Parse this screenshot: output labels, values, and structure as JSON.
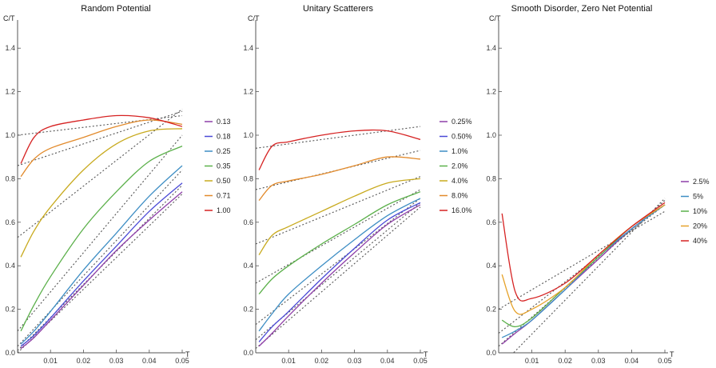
{
  "chart_data": [
    {
      "type": "line",
      "title": "Random Potential",
      "xlabel": "T",
      "ylabel": "C/T",
      "xlim": [
        0,
        0.05
      ],
      "ylim": [
        0,
        1.5
      ],
      "xticks": [
        "0.01",
        "0.02",
        "0.03",
        "0.04",
        "0.05"
      ],
      "yticks": [
        "0.0",
        "0.2",
        "0.4",
        "0.6",
        "0.8",
        "1.0",
        "1.2",
        "1.4"
      ],
      "legend_position": "right",
      "series": [
        {
          "name": "0.13",
          "color": "#8e3fa8",
          "x": [
            0.001,
            0.005,
            0.01,
            0.02,
            0.03,
            0.04,
            0.05
          ],
          "values": [
            0.02,
            0.07,
            0.15,
            0.31,
            0.47,
            0.61,
            0.74
          ]
        },
        {
          "name": "0.18",
          "color": "#4a49d6",
          "x": [
            0.001,
            0.005,
            0.01,
            0.02,
            0.03,
            0.04,
            0.05
          ],
          "values": [
            0.03,
            0.08,
            0.16,
            0.33,
            0.49,
            0.65,
            0.78
          ]
        },
        {
          "name": "0.25",
          "color": "#3e8ec4",
          "x": [
            0.001,
            0.005,
            0.01,
            0.02,
            0.03,
            0.04,
            0.05
          ],
          "values": [
            0.04,
            0.1,
            0.19,
            0.38,
            0.55,
            0.72,
            0.86
          ]
        },
        {
          "name": "0.35",
          "color": "#5bb04a",
          "x": [
            0.001,
            0.005,
            0.01,
            0.02,
            0.03,
            0.04,
            0.05
          ],
          "values": [
            0.1,
            0.22,
            0.35,
            0.57,
            0.74,
            0.88,
            0.95
          ]
        },
        {
          "name": "0.50",
          "color": "#c8aa1e",
          "x": [
            0.001,
            0.005,
            0.01,
            0.02,
            0.03,
            0.04,
            0.05
          ],
          "values": [
            0.44,
            0.56,
            0.67,
            0.84,
            0.96,
            1.02,
            1.03
          ]
        },
        {
          "name": "0.71",
          "color": "#e28a2b",
          "x": [
            0.001,
            0.005,
            0.01,
            0.02,
            0.03,
            0.04,
            0.05
          ],
          "values": [
            0.81,
            0.89,
            0.94,
            0.99,
            1.04,
            1.07,
            1.05
          ]
        },
        {
          "name": "1.00",
          "color": "#d62222",
          "x": [
            0.001,
            0.005,
            0.01,
            0.02,
            0.03,
            0.04,
            0.05
          ],
          "values": [
            0.87,
            0.99,
            1.04,
            1.07,
            1.09,
            1.08,
            1.04
          ]
        }
      ],
      "reference_lines": [
        {
          "x": [
            0.0,
            0.05
          ],
          "values": [
            0.0,
            0.73
          ]
        },
        {
          "x": [
            0.0,
            0.05
          ],
          "values": [
            0.01,
            0.77
          ]
        },
        {
          "x": [
            0.0,
            0.05
          ],
          "values": [
            0.03,
            0.84
          ]
        },
        {
          "x": [
            0.0,
            0.05
          ],
          "values": [
            0.1,
            1.0
          ]
        },
        {
          "x": [
            0.0,
            0.05
          ],
          "values": [
            0.53,
            1.12
          ]
        },
        {
          "x": [
            0.0,
            0.05
          ],
          "values": [
            0.86,
            1.11
          ]
        },
        {
          "x": [
            0.0,
            0.05
          ],
          "values": [
            1.0,
            1.09
          ]
        }
      ]
    },
    {
      "type": "line",
      "title": "Unitary Scatterers",
      "xlabel": "T",
      "ylabel": "C/T",
      "xlim": [
        0,
        0.05
      ],
      "ylim": [
        0,
        1.5
      ],
      "xticks": [
        "0.01",
        "0.02",
        "0.03",
        "0.04",
        "0.05"
      ],
      "yticks": [
        "0.0",
        "0.2",
        "0.4",
        "0.6",
        "0.8",
        "1.0",
        "1.2",
        "1.4"
      ],
      "legend_position": "right",
      "series": [
        {
          "name": "0.25%",
          "color": "#8e3fa8",
          "x": [
            0.001,
            0.005,
            0.01,
            0.02,
            0.03,
            0.04,
            0.05
          ],
          "values": [
            0.03,
            0.09,
            0.17,
            0.32,
            0.46,
            0.59,
            0.68
          ]
        },
        {
          "name": "0.50%",
          "color": "#4a49d6",
          "x": [
            0.001,
            0.005,
            0.01,
            0.02,
            0.03,
            0.04,
            0.05
          ],
          "values": [
            0.05,
            0.12,
            0.19,
            0.34,
            0.48,
            0.61,
            0.69
          ]
        },
        {
          "name": "1.0%",
          "color": "#3e8ec4",
          "x": [
            0.001,
            0.005,
            0.01,
            0.02,
            0.03,
            0.04,
            0.05
          ],
          "values": [
            0.1,
            0.18,
            0.27,
            0.4,
            0.52,
            0.63,
            0.71
          ]
        },
        {
          "name": "2.0%",
          "color": "#5bb04a",
          "x": [
            0.001,
            0.005,
            0.01,
            0.02,
            0.03,
            0.04,
            0.05
          ],
          "values": [
            0.27,
            0.34,
            0.4,
            0.5,
            0.59,
            0.68,
            0.74
          ]
        },
        {
          "name": "4.0%",
          "color": "#c8aa1e",
          "x": [
            0.001,
            0.005,
            0.01,
            0.02,
            0.03,
            0.04,
            0.05
          ],
          "values": [
            0.45,
            0.54,
            0.58,
            0.65,
            0.72,
            0.78,
            0.8
          ]
        },
        {
          "name": "8.0%",
          "color": "#e28a2b",
          "x": [
            0.001,
            0.005,
            0.01,
            0.02,
            0.03,
            0.04,
            0.05
          ],
          "values": [
            0.7,
            0.77,
            0.79,
            0.82,
            0.86,
            0.9,
            0.89
          ]
        },
        {
          "name": "16.0%",
          "color": "#d62222",
          "x": [
            0.001,
            0.005,
            0.01,
            0.02,
            0.03,
            0.04,
            0.05
          ],
          "values": [
            0.84,
            0.95,
            0.97,
            1.0,
            1.02,
            1.02,
            0.98
          ]
        }
      ],
      "reference_lines": [
        {
          "x": [
            0.0,
            0.05
          ],
          "values": [
            0.02,
            0.67
          ]
        },
        {
          "x": [
            0.0,
            0.05
          ],
          "values": [
            0.06,
            0.69
          ]
        },
        {
          "x": [
            0.0,
            0.05
          ],
          "values": [
            0.13,
            0.71
          ]
        },
        {
          "x": [
            0.0,
            0.05
          ],
          "values": [
            0.32,
            0.75
          ]
        },
        {
          "x": [
            0.0,
            0.05
          ],
          "values": [
            0.5,
            0.81
          ]
        },
        {
          "x": [
            0.0,
            0.05
          ],
          "values": [
            0.75,
            0.93
          ]
        },
        {
          "x": [
            0.0,
            0.05
          ],
          "values": [
            0.94,
            1.04
          ]
        }
      ]
    },
    {
      "type": "line",
      "title": "Smooth Disorder, Zero Net Potential",
      "xlabel": "T",
      "ylabel": "C/T",
      "xlim": [
        0,
        0.05
      ],
      "ylim": [
        0,
        1.5
      ],
      "xticks": [
        "0.01",
        "0.02",
        "0.03",
        "0.04",
        "0.05"
      ],
      "yticks": [
        "0.0",
        "0.2",
        "0.4",
        "0.6",
        "0.8",
        "1.0",
        "1.2",
        "1.4"
      ],
      "legend_position": "right",
      "series": [
        {
          "name": "2.5%",
          "color": "#8e3fa8",
          "x": [
            0.001,
            0.005,
            0.01,
            0.02,
            0.03,
            0.04,
            0.05
          ],
          "values": [
            0.04,
            0.09,
            0.15,
            0.29,
            0.43,
            0.57,
            0.68
          ]
        },
        {
          "name": "5%",
          "color": "#3e8ec4",
          "x": [
            0.001,
            0.005,
            0.01,
            0.02,
            0.03,
            0.04,
            0.05
          ],
          "values": [
            0.07,
            0.1,
            0.15,
            0.29,
            0.44,
            0.57,
            0.68
          ]
        },
        {
          "name": "10%",
          "color": "#5bb04a",
          "x": [
            0.001,
            0.005,
            0.01,
            0.02,
            0.03,
            0.04,
            0.05
          ],
          "values": [
            0.15,
            0.12,
            0.16,
            0.3,
            0.44,
            0.58,
            0.68
          ]
        },
        {
          "name": "20%",
          "color": "#e6a22a",
          "x": [
            0.001,
            0.005,
            0.01,
            0.02,
            0.03,
            0.04,
            0.05
          ],
          "values": [
            0.36,
            0.19,
            0.2,
            0.3,
            0.45,
            0.58,
            0.68
          ]
        },
        {
          "name": "40%",
          "color": "#d62222",
          "x": [
            0.001,
            0.005,
            0.01,
            0.02,
            0.03,
            0.04,
            0.05
          ],
          "values": [
            0.64,
            0.28,
            0.25,
            0.32,
            0.45,
            0.58,
            0.69
          ]
        }
      ],
      "reference_lines": [
        {
          "x": [
            0.0,
            0.05
          ],
          "values": [
            -0.07,
            0.71
          ]
        },
        {
          "x": [
            0.0,
            0.05
          ],
          "values": [
            0.03,
            0.7
          ]
        },
        {
          "x": [
            0.0,
            0.05
          ],
          "values": [
            0.09,
            0.68
          ]
        },
        {
          "x": [
            0.0,
            0.05
          ],
          "values": [
            0.2,
            0.65
          ]
        }
      ]
    }
  ]
}
